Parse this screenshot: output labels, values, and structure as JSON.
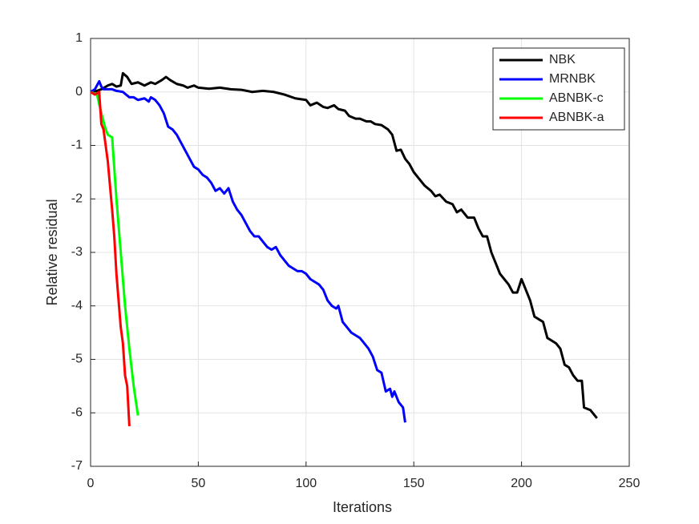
{
  "chart_data": {
    "type": "line",
    "xlabel": "Iterations",
    "ylabel": "Relative residual",
    "xlim": [
      0,
      250
    ],
    "xticks": [
      0,
      50,
      100,
      150,
      200,
      250
    ],
    "ylim": [
      -7,
      1
    ],
    "yticks": [
      -7,
      -6,
      -5,
      -4,
      -3,
      -2,
      -1,
      0,
      1
    ],
    "grid": true,
    "legend": "upper-right",
    "series": [
      {
        "name": "NBK",
        "color": "#000000",
        "x": [
          0,
          3,
          5,
          8,
          10,
          12,
          14,
          15,
          17,
          19,
          22,
          25,
          28,
          30,
          33,
          35,
          37,
          40,
          43,
          45,
          48,
          50,
          55,
          60,
          65,
          70,
          75,
          80,
          85,
          90,
          95,
          100,
          102,
          105,
          108,
          110,
          113,
          115,
          118,
          120,
          123,
          125,
          128,
          130,
          132,
          135,
          138,
          140,
          142,
          144,
          146,
          148,
          150,
          152,
          155,
          158,
          160,
          162,
          165,
          168,
          170,
          172,
          175,
          178,
          180,
          182,
          184,
          186,
          188,
          190,
          192,
          194,
          196,
          198,
          200,
          202,
          204,
          206,
          208,
          210,
          212,
          214,
          216,
          218,
          220,
          222,
          224,
          226,
          228,
          229,
          232,
          235
        ],
        "values": [
          0,
          0.02,
          0.05,
          0.12,
          0.15,
          0.1,
          0.12,
          0.35,
          0.28,
          0.15,
          0.18,
          0.12,
          0.18,
          0.15,
          0.22,
          0.28,
          0.22,
          0.15,
          0.12,
          0.08,
          0.12,
          0.08,
          0.06,
          0.08,
          0.05,
          0.04,
          0,
          0.02,
          0,
          -0.05,
          -0.12,
          -0.15,
          -0.25,
          -0.2,
          -0.28,
          -0.3,
          -0.25,
          -0.32,
          -0.35,
          -0.45,
          -0.5,
          -0.5,
          -0.55,
          -0.55,
          -0.6,
          -0.62,
          -0.7,
          -0.8,
          -1.1,
          -1.08,
          -1.25,
          -1.35,
          -1.5,
          -1.6,
          -1.75,
          -1.85,
          -1.95,
          -1.92,
          -2.05,
          -2.1,
          -2.25,
          -2.2,
          -2.35,
          -2.35,
          -2.55,
          -2.7,
          -2.7,
          -3,
          -3.2,
          -3.4,
          -3.5,
          -3.6,
          -3.75,
          -3.75,
          -3.5,
          -3.7,
          -3.9,
          -4.2,
          -4.25,
          -4.3,
          -4.6,
          -4.65,
          -4.7,
          -4.8,
          -5.1,
          -5.15,
          -5.3,
          -5.4,
          -5.4,
          -5.9,
          -5.95,
          -6.1
        ]
      },
      {
        "name": "MRNBK",
        "color": "#0000ff",
        "x": [
          0,
          2,
          4,
          5,
          6,
          8,
          10,
          12,
          15,
          18,
          20,
          22,
          25,
          27,
          28,
          30,
          32,
          34,
          36,
          38,
          40,
          42,
          44,
          46,
          48,
          50,
          52,
          54,
          56,
          58,
          60,
          62,
          64,
          66,
          68,
          70,
          72,
          74,
          76,
          78,
          80,
          82,
          84,
          86,
          88,
          90,
          92,
          94,
          96,
          98,
          100,
          102,
          104,
          106,
          108,
          110,
          112,
          114,
          115,
          117,
          119,
          121,
          123,
          125,
          127,
          129,
          131,
          133,
          135,
          137,
          139,
          140,
          141,
          143,
          145,
          146
        ],
        "values": [
          0,
          0.05,
          0.2,
          0.1,
          0.05,
          0.05,
          0.05,
          0.02,
          0,
          -0.1,
          -0.1,
          -0.15,
          -0.12,
          -0.18,
          -0.1,
          -0.15,
          -0.25,
          -0.4,
          -0.65,
          -0.7,
          -0.8,
          -0.95,
          -1.1,
          -1.25,
          -1.4,
          -1.45,
          -1.55,
          -1.6,
          -1.7,
          -1.85,
          -1.8,
          -1.9,
          -1.8,
          -2.05,
          -2.2,
          -2.3,
          -2.45,
          -2.6,
          -2.7,
          -2.7,
          -2.8,
          -2.9,
          -2.95,
          -2.9,
          -3.05,
          -3.15,
          -3.25,
          -3.3,
          -3.35,
          -3.35,
          -3.4,
          -3.5,
          -3.55,
          -3.6,
          -3.7,
          -3.9,
          -4,
          -4.05,
          -4,
          -4.3,
          -4.4,
          -4.5,
          -4.55,
          -4.6,
          -4.7,
          -4.8,
          -4.95,
          -5.2,
          -5.25,
          -5.6,
          -5.55,
          -5.7,
          -5.6,
          -5.8,
          -5.9,
          -6.18
        ]
      },
      {
        "name": "ABNBK-c",
        "color": "#00ff00",
        "x": [
          0,
          3,
          5,
          7,
          8,
          10,
          12,
          14,
          16,
          18,
          20,
          22
        ],
        "values": [
          0,
          -0.05,
          -0.4,
          -0.7,
          -0.8,
          -0.85,
          -2,
          -3,
          -4,
          -4.8,
          -5.5,
          -6.05
        ]
      },
      {
        "name": "ABNBK-a",
        "color": "#ff0000",
        "x": [
          0,
          2,
          4,
          5,
          6,
          8,
          10,
          11,
          12,
          13,
          14,
          15,
          16,
          17,
          18
        ],
        "values": [
          0,
          -0.05,
          0,
          -0.6,
          -0.7,
          -1.3,
          -2.2,
          -2.7,
          -3.4,
          -3.9,
          -4.4,
          -4.7,
          -5.3,
          -5.5,
          -6.25
        ]
      }
    ]
  }
}
